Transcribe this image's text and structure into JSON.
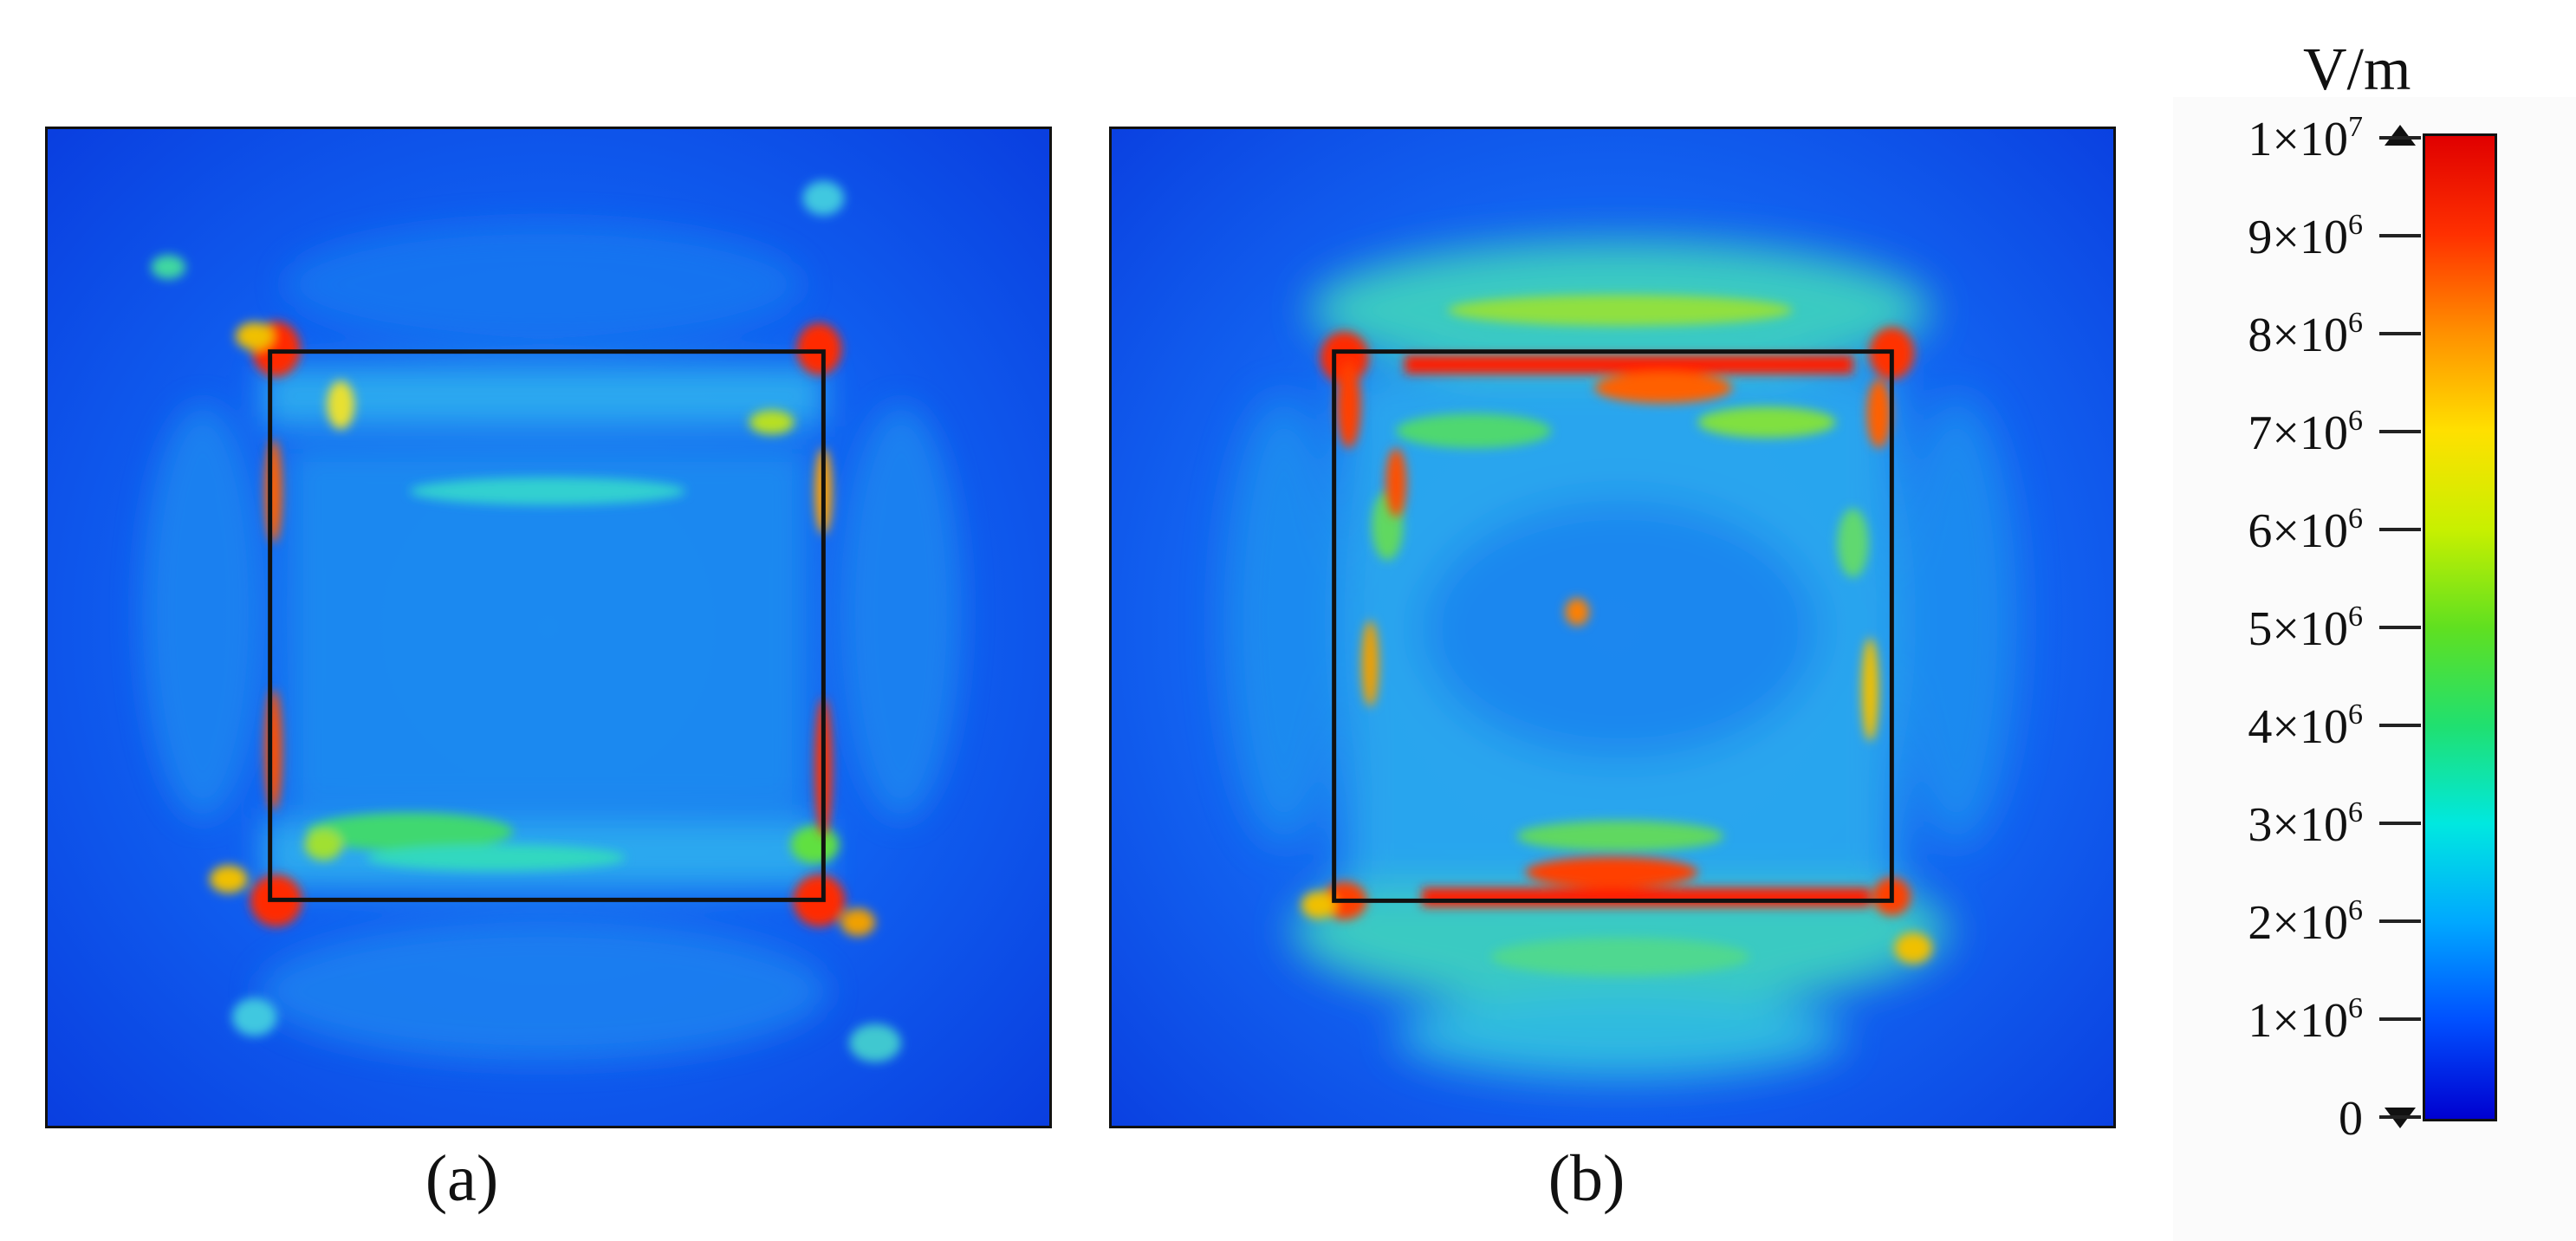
{
  "panels": [
    {
      "id": "a",
      "caption": "(a)"
    },
    {
      "id": "b",
      "caption": "(b)"
    }
  ],
  "colorbar": {
    "unit": "V/m",
    "min": 0,
    "max": 10000000,
    "ticks": [
      {
        "value": 10000000,
        "mantissa": "1×10",
        "exponent": "7"
      },
      {
        "value": 9000000,
        "mantissa": "9×10",
        "exponent": "6"
      },
      {
        "value": 8000000,
        "mantissa": "8×10",
        "exponent": "6"
      },
      {
        "value": 7000000,
        "mantissa": "7×10",
        "exponent": "6"
      },
      {
        "value": 6000000,
        "mantissa": "6×10",
        "exponent": "6"
      },
      {
        "value": 5000000,
        "mantissa": "5×10",
        "exponent": "6"
      },
      {
        "value": 4000000,
        "mantissa": "4×10",
        "exponent": "6"
      },
      {
        "value": 3000000,
        "mantissa": "3×10",
        "exponent": "6"
      },
      {
        "value": 2000000,
        "mantissa": "2×10",
        "exponent": "6"
      },
      {
        "value": 1000000,
        "mantissa": "1×10",
        "exponent": "6"
      },
      {
        "value": 0,
        "mantissa": "0",
        "exponent": ""
      }
    ],
    "colors": [
      "#0000d0",
      "#0050ff",
      "#00a8ff",
      "#00e8e0",
      "#20e070",
      "#60e020",
      "#c8f000",
      "#ffe000",
      "#ff9000",
      "#ff3000",
      "#e00000"
    ]
  }
}
